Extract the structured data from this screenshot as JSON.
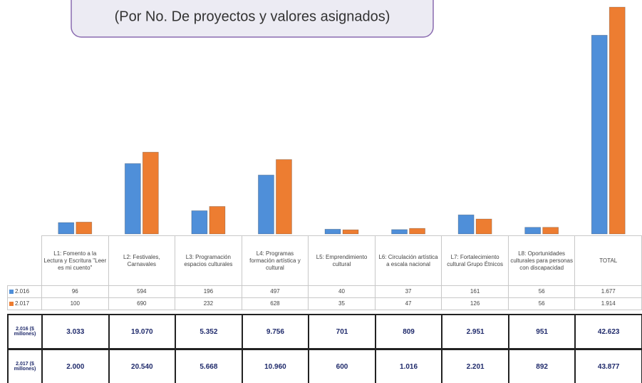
{
  "chart_data": {
    "type": "bar",
    "title": "(Por No. De proyectos y valores asignados)",
    "categories": [
      "L1: Fomento a la Lectura y Escritura \"Leer es mi cuento\"",
      "L2: Festivales, Carnavales",
      "L3: Programación espacios culturales",
      "L4: Programas formación artística y cultural",
      "L5: Emprendimiento cultural",
      "L6: Circulación artística a escala nacional",
      "L7: Fortalecimiento cultural Grupo Étnicos",
      "L8: Oportunidades culturales para personas con discapacidad",
      "TOTAL"
    ],
    "series": [
      {
        "name": "2.016",
        "color": "#4f8fd9",
        "values": [
          96,
          594,
          196,
          497,
          40,
          37,
          161,
          56,
          1677
        ],
        "value_labels": [
          "96",
          "594",
          "196",
          "497",
          "40",
          "37",
          "161",
          "56",
          "1.677"
        ]
      },
      {
        "name": "2.017",
        "color": "#ed7d31",
        "values": [
          100,
          690,
          232,
          628,
          35,
          47,
          126,
          56,
          1914
        ],
        "value_labels": [
          "100",
          "690",
          "232",
          "628",
          "35",
          "47",
          "126",
          "56",
          "1.914"
        ]
      }
    ]
  },
  "table": {
    "rows": [
      {
        "label": "2.016 ($ millones)",
        "values": [
          "3.033",
          "19.070",
          "5.352",
          "9.756",
          "701",
          "809",
          "2.951",
          "951",
          "42.623"
        ]
      },
      {
        "label": "2.017 ($ millones)",
        "values": [
          "2.000",
          "20.540",
          "5.668",
          "10.960",
          "600",
          "1.016",
          "2.201",
          "892",
          "43.877"
        ]
      }
    ]
  }
}
